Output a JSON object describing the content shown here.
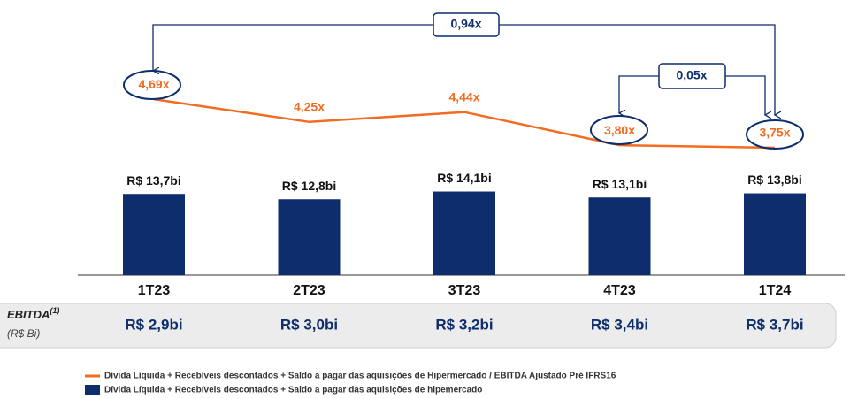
{
  "chart_data": {
    "type": "combo",
    "categories": [
      "1T23",
      "2T23",
      "3T23",
      "4T23",
      "1T24"
    ],
    "series": [
      {
        "name": "Dívida Líquida + Recebíveis descontados + Saldo a pagar das aquisições de hipemercado",
        "type": "bar",
        "color": "#0d2d6c",
        "values": [
          13.7,
          12.8,
          14.1,
          13.1,
          13.8
        ],
        "value_labels": [
          "R$ 13,7bi",
          "R$ 12,8bi",
          "R$ 14,1bi",
          "R$ 13,1bi",
          "R$ 13,8bi"
        ]
      },
      {
        "name": "Dívida Líquida + Recebíveis descontados + Saldo a pagar das aquisições de Hipermercado / EBITDA Ajustado Pré IFRS16",
        "type": "line",
        "color": "#f26b21",
        "values": [
          4.69,
          4.25,
          4.44,
          3.8,
          3.75
        ],
        "value_labels": [
          "4,69x",
          "4,25x",
          "4,44x",
          "3,80x",
          "3,75x"
        ]
      }
    ],
    "annotations": [
      {
        "label": "0,94x"
      },
      {
        "label": "0,05x"
      }
    ],
    "ebitda": {
      "label": "EBITDA",
      "superscript": "(1)",
      "unit": "(R$ Bi)",
      "values": [
        2.9,
        3.0,
        3.2,
        3.4,
        3.7
      ],
      "value_labels": [
        "R$ 2,9bi",
        "R$ 3,0bi",
        "R$ 3,2bi",
        "R$ 3,4bi",
        "R$ 3,7bi"
      ]
    }
  }
}
